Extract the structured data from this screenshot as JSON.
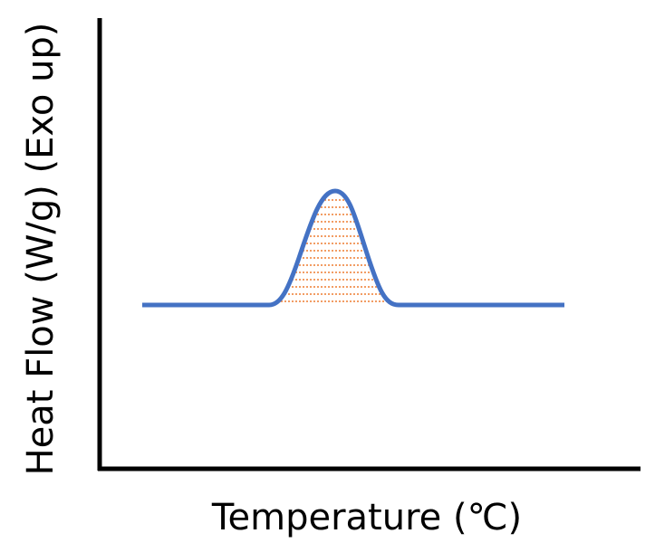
{
  "x_label": "Temperature (℃)",
  "y_label": "Heat Flow (W/g) (Exo up)"
}
